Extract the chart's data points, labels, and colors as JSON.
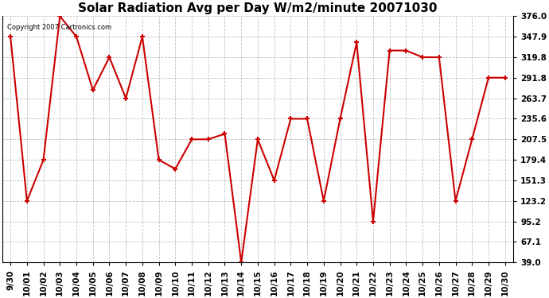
{
  "title": "Solar Radiation Avg per Day W/m2/minute 20071030",
  "copyright_text": "Copyright 2007 Cartronics.com",
  "dates": [
    "9/30",
    "10/01",
    "10/02",
    "10/03",
    "10/04",
    "10/05",
    "10/06",
    "10/07",
    "10/08",
    "10/09",
    "10/10",
    "10/11",
    "10/12",
    "10/13",
    "10/14",
    "10/15",
    "10/16",
    "10/17",
    "10/18",
    "10/19",
    "10/20",
    "10/21",
    "10/22",
    "10/23",
    "10/24",
    "10/25",
    "10/26",
    "10/27",
    "10/28",
    "10/29",
    "10/30"
  ],
  "values": [
    347.9,
    123.2,
    179.4,
    376.0,
    347.9,
    275.0,
    319.8,
    263.7,
    347.9,
    179.4,
    167.0,
    207.5,
    207.5,
    215.0,
    39.0,
    207.5,
    151.3,
    235.6,
    235.6,
    123.2,
    235.6,
    340.0,
    95.2,
    329.0,
    329.0,
    319.8,
    319.8,
    123.2,
    207.5,
    291.8,
    291.8
  ],
  "yticks": [
    39.0,
    67.1,
    95.2,
    123.2,
    151.3,
    179.4,
    207.5,
    235.6,
    263.7,
    291.8,
    319.8,
    347.9,
    376.0
  ],
  "line_color": "#cc0000",
  "marker_color": "#cc0000",
  "bg_color": "#ffffff",
  "grid_color": "#b0b0b0",
  "title_fontsize": 11,
  "tick_fontsize": 7.5
}
